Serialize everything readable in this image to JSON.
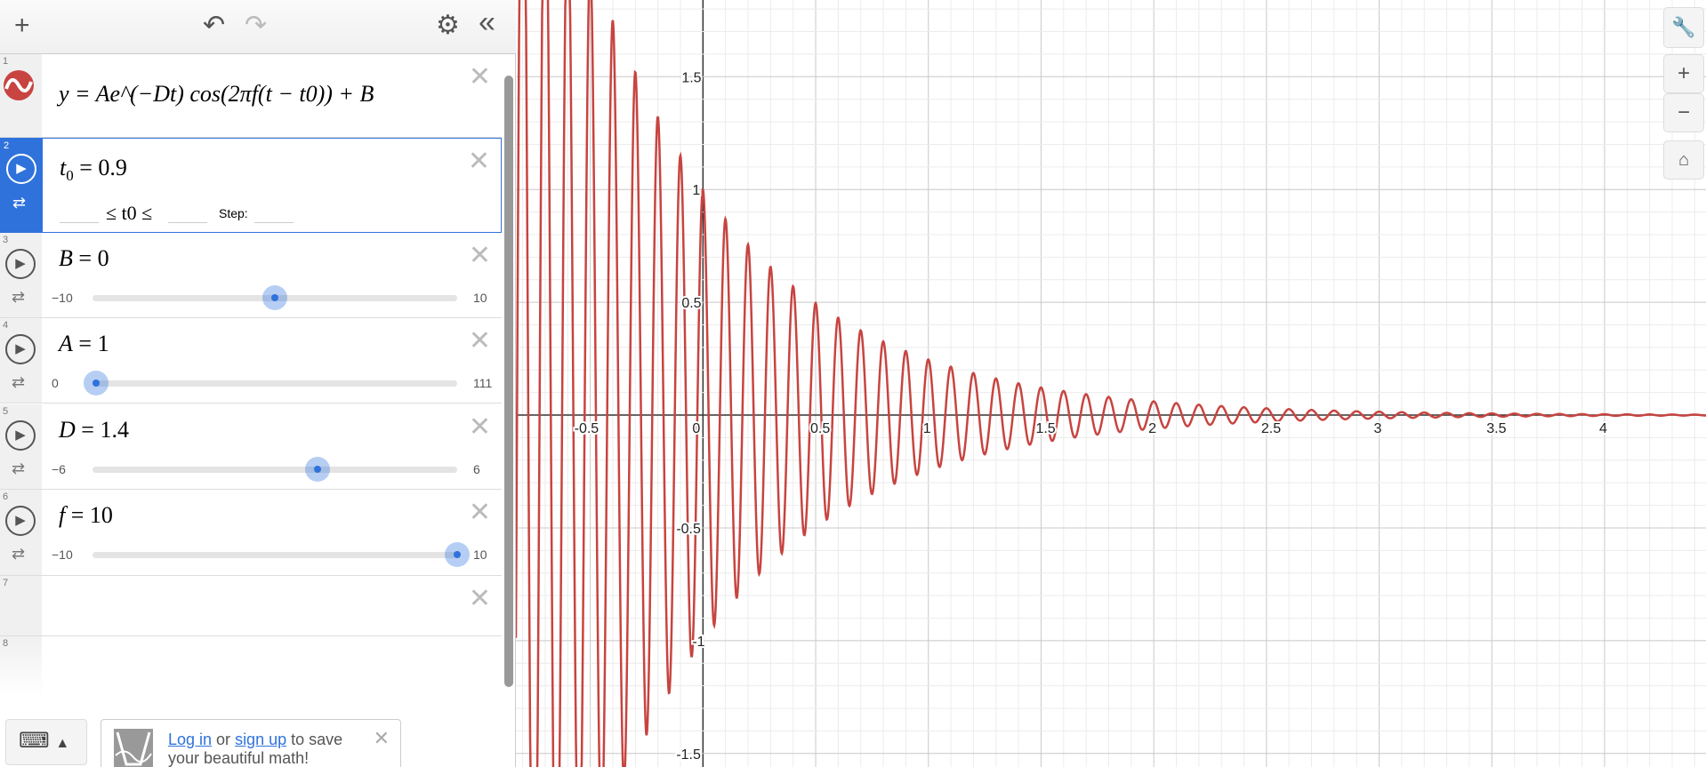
{
  "toolbar": {
    "add": "+",
    "undo": "↶",
    "redo": "↷",
    "settings": "⚙",
    "collapse": "«"
  },
  "expressions": [
    {
      "num": "1",
      "latex": "y = Ae^(−Dt) cos(2πf(t − t0)) + B",
      "color": "#c74440"
    },
    {
      "num": "2",
      "var": "t",
      "sub": "0",
      "value": "0.9",
      "range_lbl": "≤ t0 ≤",
      "step_lbl": "Step:",
      "min": "",
      "max": "",
      "step": ""
    },
    {
      "num": "3",
      "var": "B",
      "value": "0",
      "min": "−10",
      "max": "10",
      "fraction": 0.5
    },
    {
      "num": "4",
      "var": "A",
      "value": "1",
      "min": "0",
      "max": "111",
      "fraction": 0.009
    },
    {
      "num": "5",
      "var": "D",
      "value": "1.4",
      "min": "−6",
      "max": "6",
      "fraction": 0.617
    },
    {
      "num": "6",
      "var": "f",
      "value": "10",
      "min": "−10",
      "max": "10",
      "fraction": 1.0
    },
    {
      "num": "7"
    },
    {
      "num": "8"
    }
  ],
  "footer": {
    "login": "Log in",
    "or": " or ",
    "signup": "sign up",
    "rest": " to save your beautiful math!",
    "close": "✕"
  },
  "graph_controls": {
    "wrench": "wrench-icon",
    "zoom_in": "+",
    "zoom_out": "−",
    "home": "home-icon"
  },
  "chart_data": {
    "type": "line",
    "function": "y = A*exp(-D*t)*cos(2*pi*f*(t - t0)) + B",
    "params": {
      "A": 1,
      "D": 1.4,
      "f": 10,
      "t0": 0.9,
      "B": 0
    },
    "color": "#c74440",
    "xlim": [
      -0.83,
      4.45
    ],
    "ylim": [
      -1.56,
      1.84
    ],
    "x_ticks": [
      "-0.5",
      "0",
      "0.5",
      "1",
      "1.5",
      "2",
      "2.5",
      "3",
      "3.5",
      "4"
    ],
    "y_ticks": [
      "1.5",
      "1",
      "0.5",
      "-0.5",
      "-1",
      "-1.5"
    ],
    "grid": true
  }
}
